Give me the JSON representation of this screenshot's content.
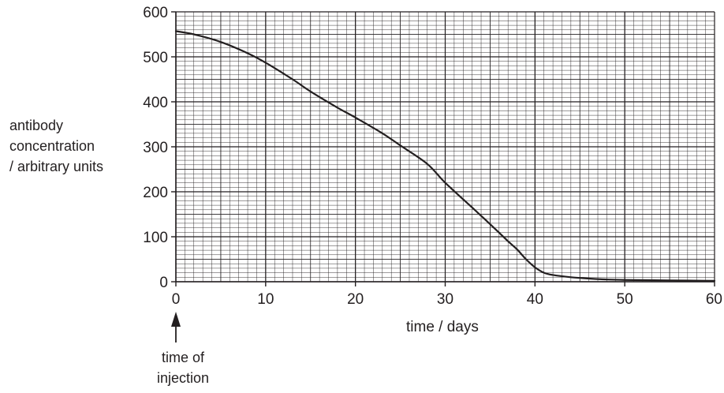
{
  "chart_data": {
    "type": "line",
    "title": "",
    "ylabel_lines": [
      "antibody",
      "concentration",
      "/ arbitrary units"
    ],
    "xlabel": "time / days",
    "xlim": [
      0,
      60
    ],
    "ylim": [
      0,
      600
    ],
    "x_ticks": [
      0,
      10,
      20,
      30,
      40,
      50,
      60
    ],
    "y_ticks": [
      0,
      100,
      200,
      300,
      400,
      500,
      600
    ],
    "x_tick_labels": [
      "0",
      "10",
      "20",
      "30",
      "40",
      "50",
      "60"
    ],
    "y_tick_labels": [
      "0",
      "100",
      "200",
      "300",
      "400",
      "500",
      "600"
    ],
    "grid": true,
    "minor_grid_per_major": 10,
    "series": [
      {
        "x": [
          0,
          2,
          5,
          8,
          10,
          13,
          15,
          18,
          20,
          23,
          25,
          28,
          30,
          33,
          35,
          37,
          38,
          39,
          40,
          41,
          42,
          44,
          46,
          48,
          50,
          55,
          60
        ],
        "y": [
          557,
          550,
          533,
          508,
          487,
          450,
          423,
          387,
          365,
          330,
          303,
          262,
          220,
          165,
          128,
          90,
          72,
          50,
          32,
          20,
          15,
          10,
          7,
          5,
          4,
          3,
          2
        ]
      }
    ],
    "annotation": {
      "x": 0,
      "text_lines": [
        "time of",
        "injection"
      ]
    },
    "colors": {
      "line": "#231f20",
      "grid": "#231f20"
    }
  }
}
